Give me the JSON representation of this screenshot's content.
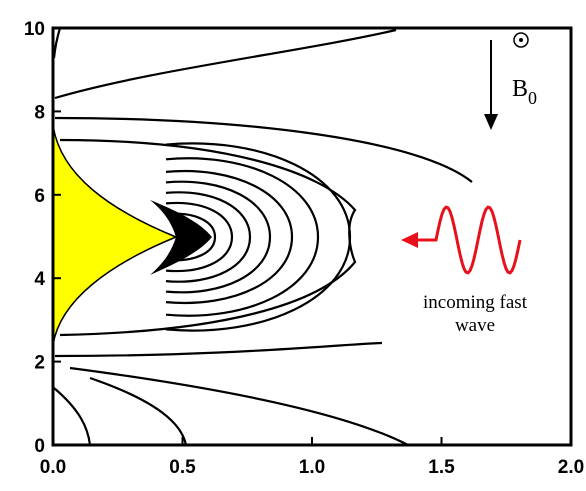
{
  "chart_data": {
    "type": "contour",
    "xlim": [
      0,
      2
    ],
    "ylim": [
      0,
      10
    ],
    "xticks": [
      {
        "value": 0,
        "label": "0.0"
      },
      {
        "value": 0.5,
        "label": "0.5"
      },
      {
        "value": 1,
        "label": "1.0"
      },
      {
        "value": 1.5,
        "label": "1.5"
      },
      {
        "value": 2,
        "label": "2.0"
      }
    ],
    "yticks": [
      0,
      2,
      4,
      6,
      8,
      10
    ],
    "field_label": {
      "main": "B",
      "sub": "0"
    },
    "wave_label": [
      "incoming fast",
      "wave"
    ],
    "wave_color": "#e8101a",
    "region_color": "#ffff00",
    "line_color": "#000000"
  }
}
